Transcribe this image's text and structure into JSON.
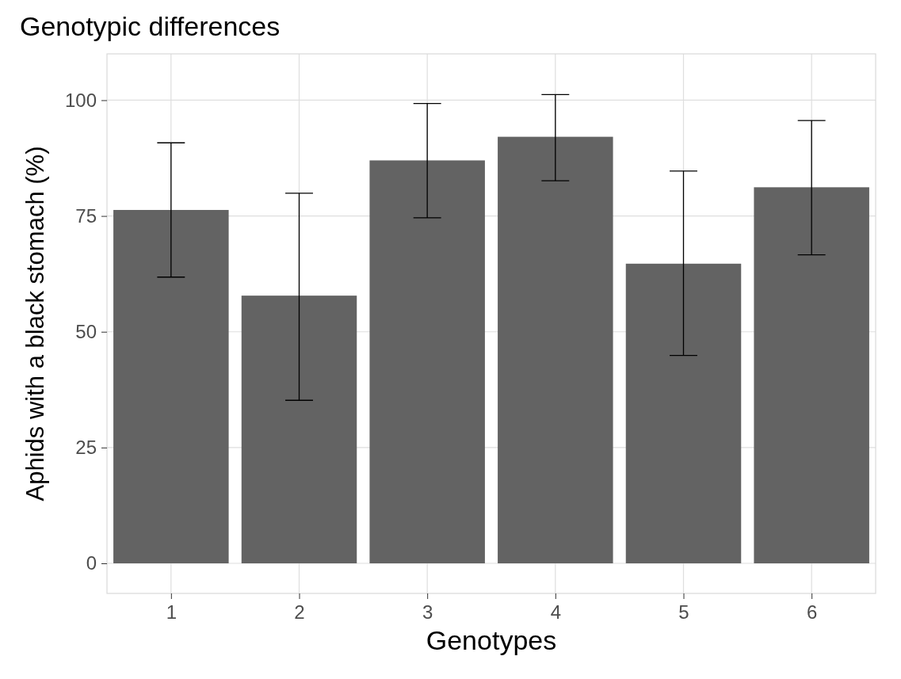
{
  "chart_data": {
    "type": "bar",
    "title": "Genotypic differences",
    "xlabel": "Genotypes",
    "ylabel": "Aphids with a black stomach (%)",
    "categories": [
      "1",
      "2",
      "3",
      "4",
      "5",
      "6"
    ],
    "values": [
      76.3,
      57.8,
      87.0,
      92.1,
      64.7,
      81.2
    ],
    "errors": [
      [
        61.8,
        90.8
      ],
      [
        35.2,
        79.9
      ],
      [
        74.6,
        99.3
      ],
      [
        82.6,
        101.2
      ],
      [
        44.9,
        84.7
      ],
      [
        66.6,
        95.6
      ]
    ],
    "color": "#636363",
    "ylim": [
      -6.5,
      110
    ],
    "yticks": [
      0,
      25,
      50,
      75,
      100
    ],
    "grid": true
  }
}
